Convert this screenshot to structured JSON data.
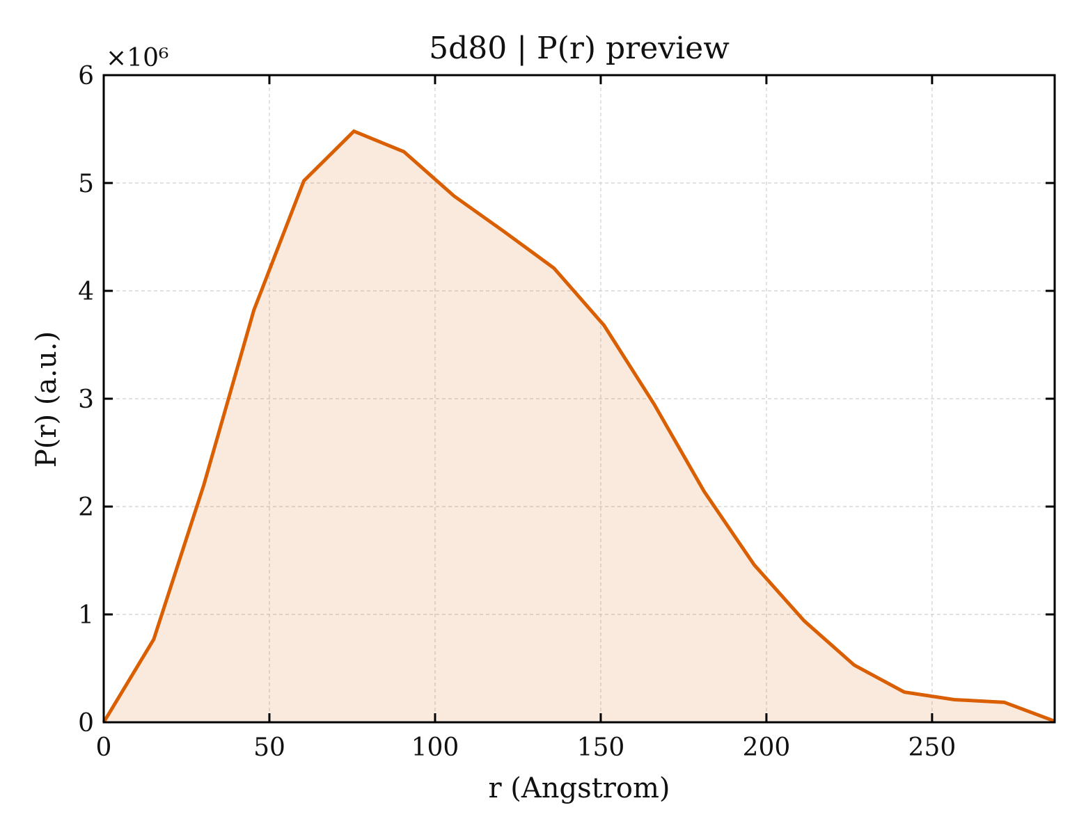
{
  "chart_data": {
    "type": "area",
    "title": "5d80 | P(r) preview",
    "xlabel": "r (Angstrom)",
    "ylabel": "P(r) (a.u.)",
    "y_multiplier_label": "×10⁶",
    "y_scale": 1000000,
    "xlim": [
      0,
      287
    ],
    "ylim": [
      0,
      6000000
    ],
    "x_ticks": [
      0,
      50,
      100,
      150,
      200,
      250
    ],
    "x_tick_labels": [
      "0",
      "50",
      "100",
      "150",
      "200",
      "250"
    ],
    "y_ticks": [
      0,
      1000000,
      2000000,
      3000000,
      4000000,
      5000000,
      6000000
    ],
    "y_tick_labels": [
      "0",
      "1",
      "2",
      "3",
      "4",
      "5",
      "6"
    ],
    "grid": true,
    "series": [
      {
        "color": "#d95f02",
        "fill_color": "#d95f02",
        "fill_opacity": 0.13,
        "x": [
          0,
          15.1,
          30.2,
          45.3,
          60.4,
          75.5,
          90.6,
          105.7,
          120.8,
          135.9,
          151.0,
          166.1,
          181.2,
          196.3,
          211.4,
          226.5,
          241.6,
          256.7,
          271.8,
          287.0
        ],
        "y": [
          0,
          770000,
          2200000,
          3820000,
          5020000,
          5480000,
          5290000,
          4880000,
          4550000,
          4210000,
          3680000,
          2950000,
          2140000,
          1460000,
          940000,
          530000,
          280000,
          210000,
          185000,
          10000
        ]
      }
    ]
  }
}
